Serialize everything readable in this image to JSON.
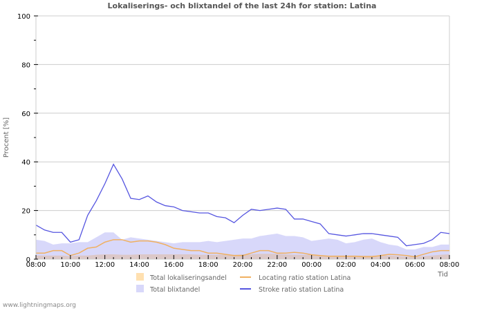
{
  "title": "Lokaliserings- och blixtandel of the last 24h for station: Latina",
  "footer": "www.lightningmaps.org",
  "chart_data": {
    "type": "line",
    "title": "Lokaliserings- och blixtandel of the last 24h for station: Latina",
    "xlabel": "Tid",
    "ylabel": "Procent   [%]",
    "ylim": [
      0,
      100
    ],
    "xlim_hours": [
      0,
      24
    ],
    "y_ticks": [
      0,
      20,
      40,
      60,
      80,
      100
    ],
    "x_tick_labels": [
      "08:00",
      "10:00",
      "12:00",
      "14:00",
      "16:00",
      "18:00",
      "20:00",
      "22:00",
      "00:00",
      "02:00",
      "04:00",
      "06:00",
      "08:00"
    ],
    "grid": true,
    "legend_position": "bottom",
    "colors": {
      "total_lokaliseringsandel": "#ffe0b0",
      "total_blixtandel": "#d8d8fa",
      "locating_ratio": "#f0b060",
      "stroke_ratio": "#5555e0",
      "overlap": "#dcc8c8",
      "grid": "#cccccc"
    },
    "x": [
      0,
      0.5,
      1,
      1.5,
      2,
      2.5,
      3,
      3.5,
      4,
      4.5,
      5,
      5.5,
      6,
      6.5,
      7,
      7.5,
      8,
      8.5,
      9,
      9.5,
      10,
      10.5,
      11,
      11.5,
      12,
      12.5,
      13,
      13.5,
      14,
      14.5,
      15,
      15.5,
      16,
      16.5,
      17,
      17.5,
      18,
      18.5,
      19,
      19.5,
      20,
      20.5,
      21,
      21.5,
      22,
      22.5,
      23,
      23.5,
      24
    ],
    "series": [
      {
        "name": "Total blixtandel",
        "kind": "area",
        "values": [
          8,
          7.5,
          6,
          6.5,
          6.5,
          7,
          7,
          9,
          11,
          11,
          8,
          9,
          8.5,
          8,
          7.5,
          7,
          6.5,
          7,
          7,
          7,
          7.5,
          7,
          7.5,
          8,
          8.5,
          8.5,
          9.5,
          10,
          10.5,
          9.5,
          9.5,
          9,
          7.5,
          8,
          8.5,
          8,
          6.5,
          7,
          8,
          8.5,
          7,
          6,
          5.5,
          4,
          4,
          5,
          5,
          6,
          6
        ]
      },
      {
        "name": "Total lokaliseringsandel",
        "kind": "area",
        "values": [
          1.5,
          1.5,
          1.5,
          1.5,
          1.2,
          1.5,
          1.5,
          1.8,
          2,
          2,
          1.8,
          1.8,
          2,
          2,
          2,
          2,
          2,
          2,
          2,
          1.8,
          1.8,
          1.8,
          1.8,
          1.8,
          2,
          2,
          2.2,
          2.2,
          2.2,
          2,
          1.8,
          1.8,
          1.8,
          1.5,
          1.5,
          1.5,
          1.5,
          1.5,
          1.5,
          1.5,
          1.5,
          1.5,
          1.2,
          1,
          1,
          1.2,
          1.5,
          1.8,
          2
        ]
      },
      {
        "name": "Locating ratio station Latina",
        "kind": "line",
        "values": [
          2.5,
          2.5,
          3.5,
          3.5,
          1.5,
          2.5,
          4.5,
          5,
          7,
          8,
          8,
          7,
          7.5,
          7.5,
          7,
          6,
          4.5,
          4,
          3.5,
          3.5,
          2.5,
          2.5,
          2,
          1.5,
          1.5,
          2.5,
          3.5,
          3.5,
          2.5,
          2.5,
          2.8,
          2.5,
          1.8,
          1.5,
          1.2,
          1.2,
          1.2,
          1.2,
          1,
          1,
          1.5,
          2,
          1.8,
          1.5,
          1,
          2,
          3,
          3.5,
          3.5
        ]
      },
      {
        "name": "Stroke ratio station Latina",
        "kind": "line",
        "values": [
          14,
          12,
          11,
          11,
          7,
          8,
          18,
          24,
          31,
          39,
          33,
          25,
          24.5,
          26,
          23.5,
          22,
          21.5,
          20,
          19.5,
          19,
          19,
          17.5,
          17,
          15,
          18,
          20.5,
          20,
          20.5,
          21,
          20.5,
          16.5,
          16.5,
          15.5,
          14.5,
          10.5,
          10,
          9.5,
          10,
          10.5,
          10.5,
          10,
          9.5,
          9,
          5.5,
          6,
          6.5,
          8,
          11,
          10.5
        ]
      }
    ],
    "legend": [
      {
        "label": "Total lokaliseringsandel",
        "type": "box",
        "color": "#ffe0b0"
      },
      {
        "label": "Locating ratio station Latina",
        "type": "line",
        "color": "#f0b060"
      },
      {
        "label": "Total blixtandel",
        "type": "box",
        "color": "#d8d8fa"
      },
      {
        "label": "Stroke ratio station Latina",
        "type": "line",
        "color": "#5555e0"
      }
    ]
  }
}
